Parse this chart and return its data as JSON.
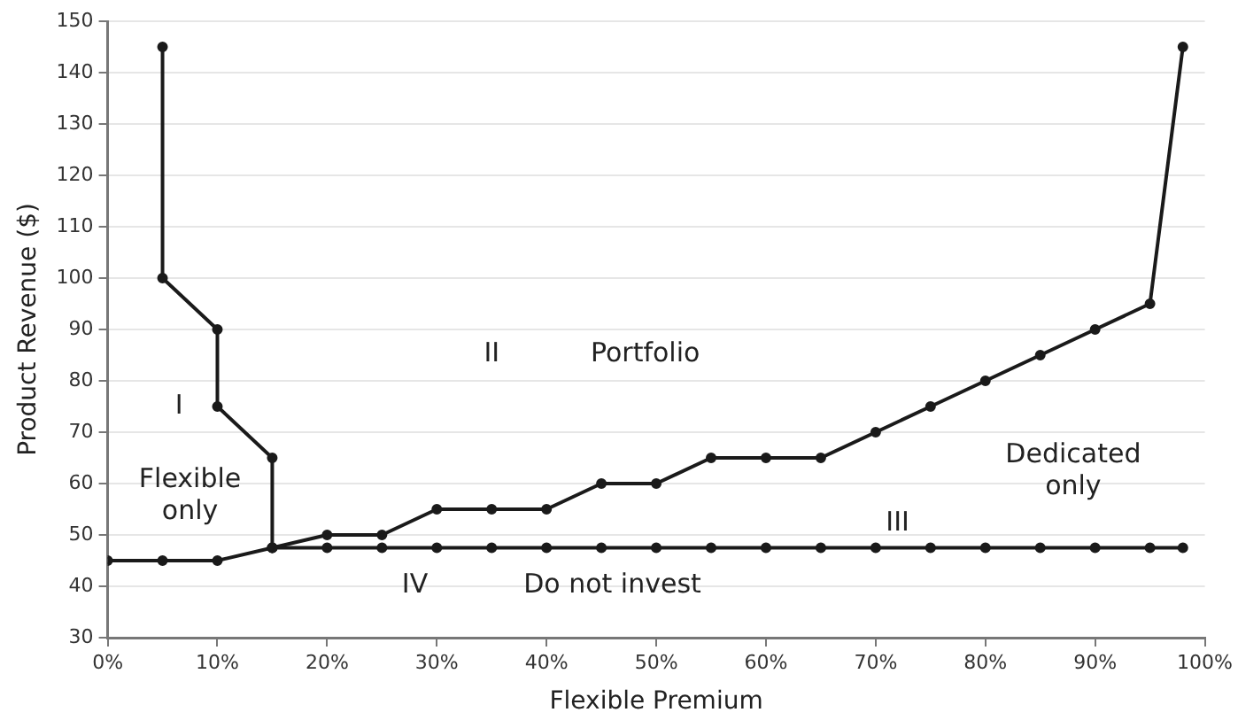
{
  "chart_data": {
    "type": "line",
    "xlabel": "Flexible Premium",
    "ylabel": "Product Revenue ($)",
    "xlim": [
      0,
      100
    ],
    "ylim": [
      30,
      150
    ],
    "xticks": [
      {
        "value": 0,
        "label": "0%"
      },
      {
        "value": 10,
        "label": "10%"
      },
      {
        "value": 20,
        "label": "20%"
      },
      {
        "value": 30,
        "label": "30%"
      },
      {
        "value": 40,
        "label": "40%"
      },
      {
        "value": 50,
        "label": "50%"
      },
      {
        "value": 60,
        "label": "60%"
      },
      {
        "value": 70,
        "label": "70%"
      },
      {
        "value": 80,
        "label": "80%"
      },
      {
        "value": 90,
        "label": "90%"
      },
      {
        "value": 100,
        "label": "100%"
      }
    ],
    "yticks": [
      30,
      40,
      50,
      60,
      70,
      80,
      90,
      100,
      110,
      120,
      130,
      140,
      150
    ],
    "grid": "y",
    "marker": "circle",
    "line_style": "solid",
    "legend": false,
    "series": [
      {
        "color": "#1a1a1a",
        "x": [
          5,
          5,
          10,
          10,
          15,
          15
        ],
        "values": [
          145,
          100,
          90,
          75,
          65,
          47.5
        ]
      },
      {
        "color": "#1a1a1a",
        "x": [
          0,
          5,
          10,
          15,
          20,
          25,
          30,
          35,
          40,
          45,
          50,
          55,
          60,
          65,
          70,
          75,
          80,
          85,
          90,
          95,
          98
        ],
        "values": [
          45,
          45,
          45,
          47.5,
          50,
          50,
          55,
          55,
          55,
          60,
          60,
          65,
          65,
          65,
          70,
          75,
          80,
          85,
          90,
          95,
          145
        ]
      },
      {
        "color": "#1a1a1a",
        "x": [
          15,
          20,
          25,
          30,
          35,
          40,
          45,
          50,
          55,
          60,
          65,
          70,
          75,
          80,
          85,
          90,
          95,
          98
        ],
        "values": [
          47.5,
          47.5,
          47.5,
          47.5,
          47.5,
          47.5,
          47.5,
          47.5,
          47.5,
          47.5,
          47.5,
          47.5,
          47.5,
          47.5,
          47.5,
          47.5,
          47.5,
          47.5
        ]
      }
    ],
    "annotations": [
      "I",
      "Flexible\nonly",
      "II",
      "Portfolio",
      "III",
      "Dedicated\nonly",
      "IV",
      "Do not invest"
    ]
  }
}
